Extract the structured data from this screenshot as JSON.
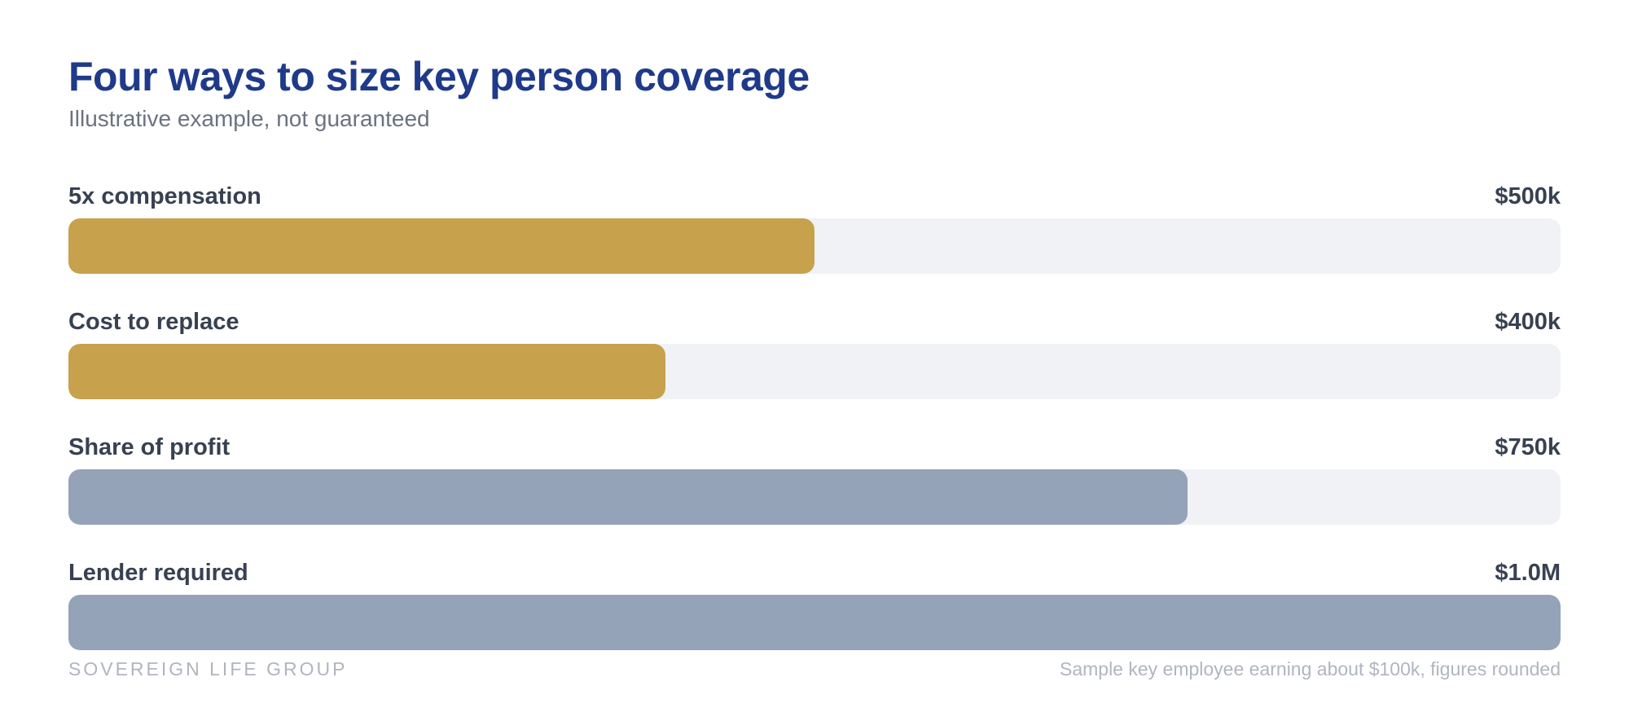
{
  "header": {
    "title": "Four ways to size key person coverage",
    "subtitle": "Illustrative example, not guaranteed"
  },
  "chart_data": {
    "type": "bar",
    "orientation": "horizontal",
    "title": "Four ways to size key person coverage",
    "subtitle": "Illustrative example, not guaranteed",
    "xlim": [
      0,
      1000000
    ],
    "grid": false,
    "categories": [
      "5x compensation",
      "Cost to replace",
      "Share of profit",
      "Lender required"
    ],
    "values": [
      500000,
      400000,
      750000,
      1000000
    ],
    "value_labels": [
      "$500k",
      "$400k",
      "$750k",
      "$1.0M"
    ],
    "colors": [
      "#c8a14c",
      "#c8a14c",
      "#94a3b8",
      "#94a3b8"
    ],
    "track_color": "#f1f2f6"
  },
  "footer": {
    "brand": "SOVEREIGN LIFE GROUP",
    "note": "Sample key employee earning about $100k, figures rounded"
  }
}
